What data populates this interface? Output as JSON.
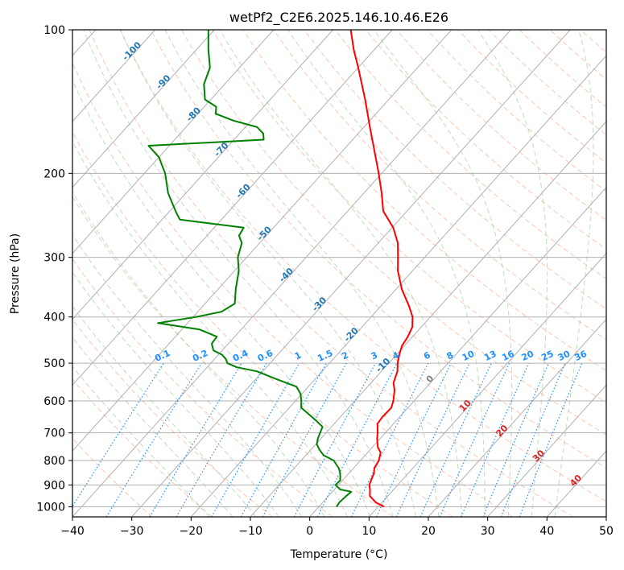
{
  "chart_data": {
    "type": "line",
    "subtype": "skew-t log-p",
    "title": "wetPf2_C2E6.2025.146.10.46.E26",
    "xlabel": "Temperature (°C)",
    "ylabel": "Pressure (hPa)",
    "xlim": [
      -40,
      50
    ],
    "ylim": [
      1050,
      100
    ],
    "y_scale": "log",
    "grid": true,
    "x_ticks": [
      "−40",
      "−30",
      "−20",
      "−10",
      "0",
      "10",
      "20",
      "30",
      "40",
      "50"
    ],
    "y_ticks": [
      "100",
      "200",
      "300",
      "400",
      "500",
      "600",
      "700",
      "800",
      "900",
      "1000"
    ],
    "series": [
      {
        "role": "temperature",
        "color": "#ff0000",
        "points": [
          [
            1000,
            11
          ],
          [
            980,
            9
          ],
          [
            950,
            7
          ],
          [
            920,
            6
          ],
          [
            900,
            5.2
          ],
          [
            880,
            4.8
          ],
          [
            850,
            4.2
          ],
          [
            830,
            3.5
          ],
          [
            800,
            3.1
          ],
          [
            770,
            2.2
          ],
          [
            750,
            0.9
          ],
          [
            720,
            -0.5
          ],
          [
            700,
            -1.3
          ],
          [
            670,
            -2.7
          ],
          [
            650,
            -2.9
          ],
          [
            620,
            -2.8
          ],
          [
            600,
            -3.5
          ],
          [
            570,
            -4.9
          ],
          [
            550,
            -6.2
          ],
          [
            520,
            -7.3
          ],
          [
            500,
            -8.5
          ],
          [
            480,
            -9.5
          ],
          [
            460,
            -10.4
          ],
          [
            440,
            -10.8
          ],
          [
            420,
            -11.5
          ],
          [
            400,
            -13
          ],
          [
            380,
            -15.2
          ],
          [
            350,
            -19
          ],
          [
            320,
            -22.5
          ],
          [
            300,
            -24.5
          ],
          [
            280,
            -26.7
          ],
          [
            260,
            -29.8
          ],
          [
            240,
            -34
          ],
          [
            220,
            -37
          ],
          [
            200,
            -40.5
          ],
          [
            180,
            -44.5
          ],
          [
            160,
            -49
          ],
          [
            140,
            -54
          ],
          [
            120,
            -60
          ],
          [
            110,
            -63.5
          ],
          [
            100,
            -67
          ]
        ]
      },
      {
        "role": "dewpoint",
        "color": "#008000",
        "points": [
          [
            1000,
            3
          ],
          [
            980,
            2.8
          ],
          [
            950,
            3
          ],
          [
            930,
            3.2
          ],
          [
            920,
            1
          ],
          [
            900,
            -0.5
          ],
          [
            880,
            -0.4
          ],
          [
            850,
            -1.5
          ],
          [
            830,
            -2.5
          ],
          [
            800,
            -4.5
          ],
          [
            780,
            -7
          ],
          [
            760,
            -8.5
          ],
          [
            740,
            -9.8
          ],
          [
            720,
            -10.5
          ],
          [
            700,
            -11
          ],
          [
            680,
            -11.5
          ],
          [
            660,
            -13.5
          ],
          [
            650,
            -14.6
          ],
          [
            620,
            -18
          ],
          [
            600,
            -19
          ],
          [
            580,
            -20.2
          ],
          [
            560,
            -22
          ],
          [
            540,
            -26.5
          ],
          [
            520,
            -31
          ],
          [
            510,
            -35
          ],
          [
            500,
            -37.2
          ],
          [
            490,
            -38.1
          ],
          [
            480,
            -39.4
          ],
          [
            470,
            -41.5
          ],
          [
            455,
            -42.8
          ],
          [
            440,
            -43
          ],
          [
            425,
            -47
          ],
          [
            412,
            -55
          ],
          [
            400,
            -49.5
          ],
          [
            390,
            -46
          ],
          [
            375,
            -45
          ],
          [
            350,
            -47
          ],
          [
            320,
            -49.3
          ],
          [
            300,
            -51.5
          ],
          [
            280,
            -53
          ],
          [
            270,
            -54.6
          ],
          [
            260,
            -55
          ],
          [
            250,
            -67
          ],
          [
            240,
            -69
          ],
          [
            220,
            -73
          ],
          [
            200,
            -76.5
          ],
          [
            185,
            -80
          ],
          [
            175,
            -83.5
          ],
          [
            170,
            -65
          ],
          [
            165,
            -66
          ],
          [
            160,
            -68
          ],
          [
            155,
            -73
          ],
          [
            150,
            -77
          ],
          [
            145,
            -78
          ],
          [
            140,
            -81
          ],
          [
            130,
            -83.5
          ],
          [
            120,
            -85
          ],
          [
            110,
            -88
          ],
          [
            100,
            -91
          ]
        ]
      }
    ],
    "mixing_ratio_labels": [
      "0.1",
      "0.2",
      "0.4",
      "0.6",
      "1",
      "1.5",
      "2",
      "3",
      "4",
      "6",
      "8",
      "10",
      "13",
      "16",
      "20",
      "25",
      "30",
      "36"
    ],
    "isotherm_labels_cold": [
      "-100",
      "-90",
      "-80",
      "-70",
      "-60",
      "-50",
      "-40",
      "-30",
      "-20",
      "-10"
    ],
    "isotherm_labels_warm": [
      "0",
      "10",
      "20",
      "30",
      "40"
    ]
  },
  "colors": {
    "temperature": "#ff0000",
    "dewpoint": "#008000",
    "grid": "#b0b0b0",
    "dry_adiabat": "#ffa07a",
    "moist_adiabat": "#8fbc8f",
    "mixing_ratio": "#1e90ff",
    "isotherm_cold_label": "#1f77b4",
    "isotherm_warm_label": "#d62728"
  }
}
